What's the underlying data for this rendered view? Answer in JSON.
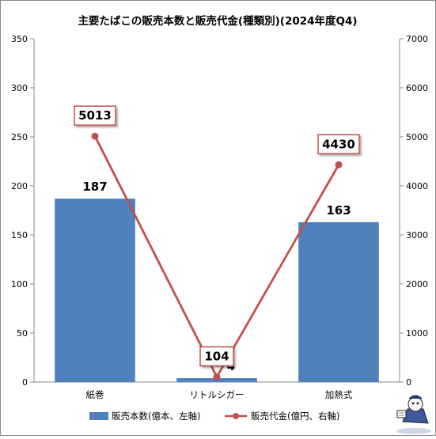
{
  "chart_data": {
    "type": "bar+line",
    "title": "主要たばこの販売本数と販売代金(種類別)(2024年度Q4)",
    "categories": [
      "紙巻",
      "リトルシガー",
      "加熱式"
    ],
    "series": [
      {
        "name": "販売本数(億本、左軸)",
        "type": "bar",
        "axis": "left",
        "values": [
          187,
          4,
          163
        ],
        "color": "#4f81bd"
      },
      {
        "name": "販売代金(億円、右軸)",
        "type": "line",
        "axis": "right",
        "values": [
          5013,
          104,
          4430
        ],
        "color": "#c0504d"
      }
    ],
    "y_left": {
      "min": 0,
      "max": 350,
      "ticks": [
        0,
        50,
        100,
        150,
        200,
        250,
        300,
        350
      ]
    },
    "y_right": {
      "min": 0,
      "max": 7000,
      "ticks": [
        0,
        1000,
        2000,
        3000,
        4000,
        5000,
        6000,
        7000
      ]
    },
    "bar_labels": [
      "187",
      "4",
      "163"
    ],
    "line_labels": [
      "5013",
      "104",
      "4430"
    ],
    "grid": false,
    "legend_position": "bottom"
  }
}
